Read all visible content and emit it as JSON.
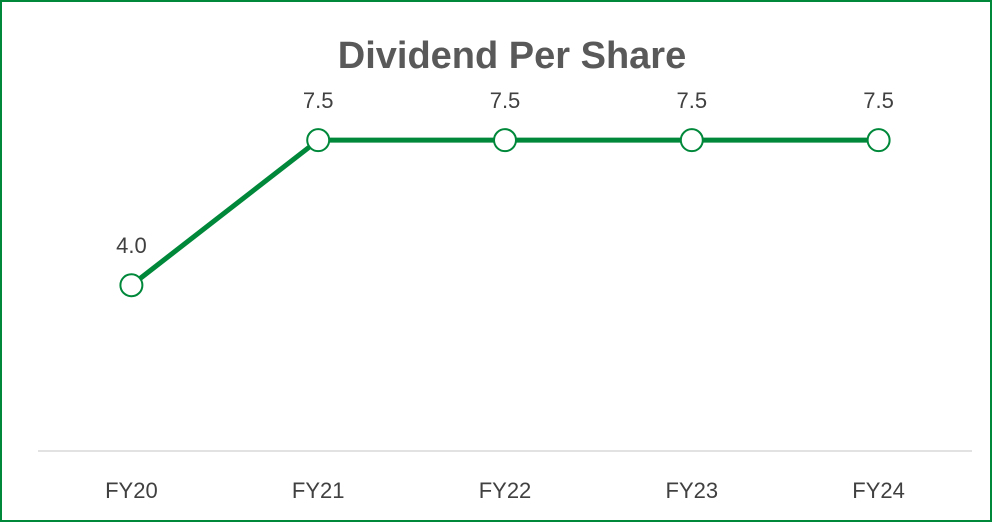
{
  "chart_data": {
    "type": "line",
    "title": "Dividend Per Share",
    "categories": [
      "FY20",
      "FY21",
      "FY22",
      "FY23",
      "FY24"
    ],
    "series": [
      {
        "name": "Dividend Per Share",
        "color": "#00883a",
        "values": [
          4.0,
          7.5,
          7.5,
          7.5,
          7.5
        ],
        "value_labels": [
          "4.0",
          "7.5",
          "7.5",
          "7.5",
          "7.5"
        ]
      }
    ],
    "ylim": [
      0,
      9
    ]
  }
}
